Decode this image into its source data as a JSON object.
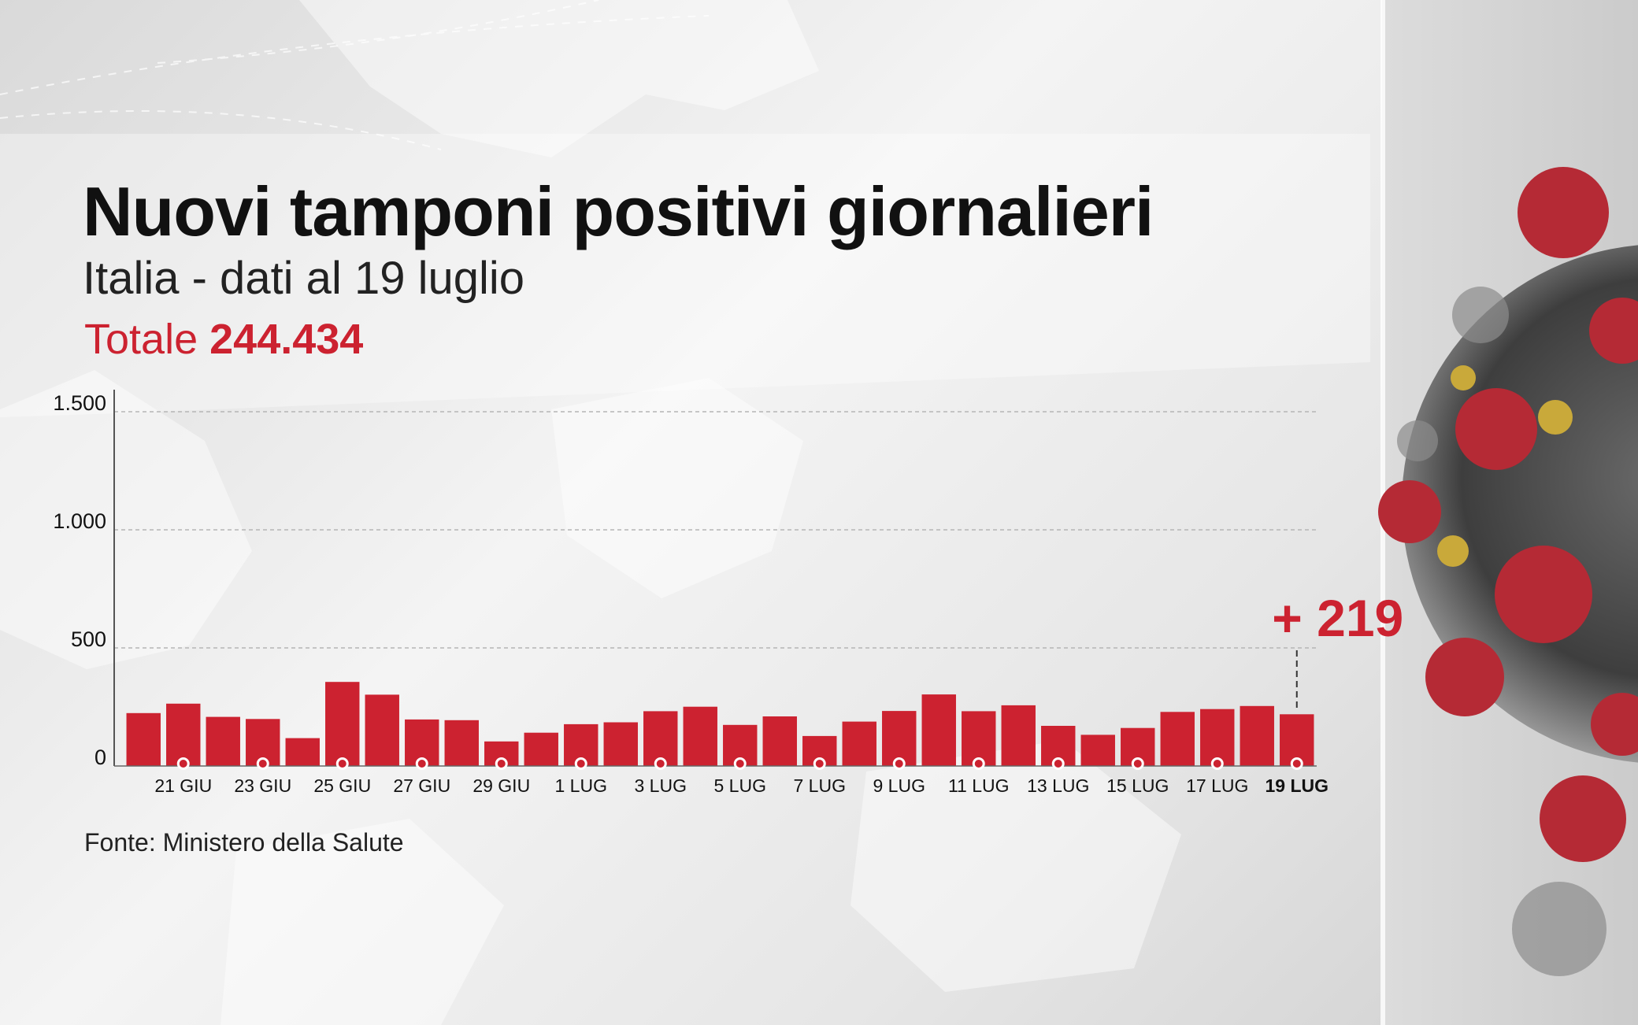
{
  "header": {
    "title": "Nuovi tamponi positivi giornalieri",
    "subtitle": "Italia - dati al 19 luglio",
    "total_label": "Totale",
    "total_value": "244.434"
  },
  "source": "Fonte: Ministero della Salute",
  "colors": {
    "bar": "#cc2230",
    "accent": "#cc2230",
    "text": "#111111",
    "grid": "#b5b5b5"
  },
  "chart_data": {
    "type": "bar",
    "title": "Nuovi tamponi positivi giornalieri",
    "subtitle": "Italia - dati al 19 luglio",
    "categories": [
      "20 giu",
      "21 giu",
      "22 giu",
      "23 giu",
      "24 giu",
      "25 giu",
      "26 giu",
      "27 giu",
      "28 giu",
      "29 giu",
      "30 giu",
      "1 lug",
      "2 lug",
      "3 lug",
      "4 lug",
      "5 lug",
      "6 lug",
      "7 lug",
      "8 lug",
      "9 lug",
      "10 lug",
      "11 lug",
      "12 lug",
      "13 lug",
      "14 lug",
      "15 lug",
      "16 lug",
      "17 lug",
      "18 lug",
      "19 lug"
    ],
    "values": [
      224,
      264,
      208,
      199,
      118,
      356,
      302,
      197,
      194,
      104,
      141,
      177,
      185,
      232,
      251,
      174,
      210,
      127,
      188,
      233,
      303,
      232,
      257,
      170,
      132,
      161,
      229,
      241,
      254,
      219
    ],
    "x_tick_labels": [
      "21 GIU",
      "23 GIU",
      "25 GIU",
      "27 GIU",
      "29 GIU",
      "1 LUG",
      "3 LUG",
      "5 LUG",
      "7 LUG",
      "9 LUG",
      "11 LUG",
      "13 LUG",
      "15 LUG",
      "17 LUG",
      "19 LUG"
    ],
    "x_tick_indices": [
      1,
      3,
      5,
      7,
      9,
      11,
      13,
      15,
      17,
      19,
      21,
      23,
      25,
      27,
      29
    ],
    "highlighted_tick": "19 LUG",
    "y_ticks": [
      0,
      500,
      1000,
      1500
    ],
    "y_tick_labels": [
      "0",
      "500",
      "1.000",
      "1.500"
    ],
    "ylim": [
      0,
      1600
    ],
    "grid": true,
    "annotation": {
      "text": "+ 219",
      "category": "19 lug",
      "value": 219
    }
  }
}
